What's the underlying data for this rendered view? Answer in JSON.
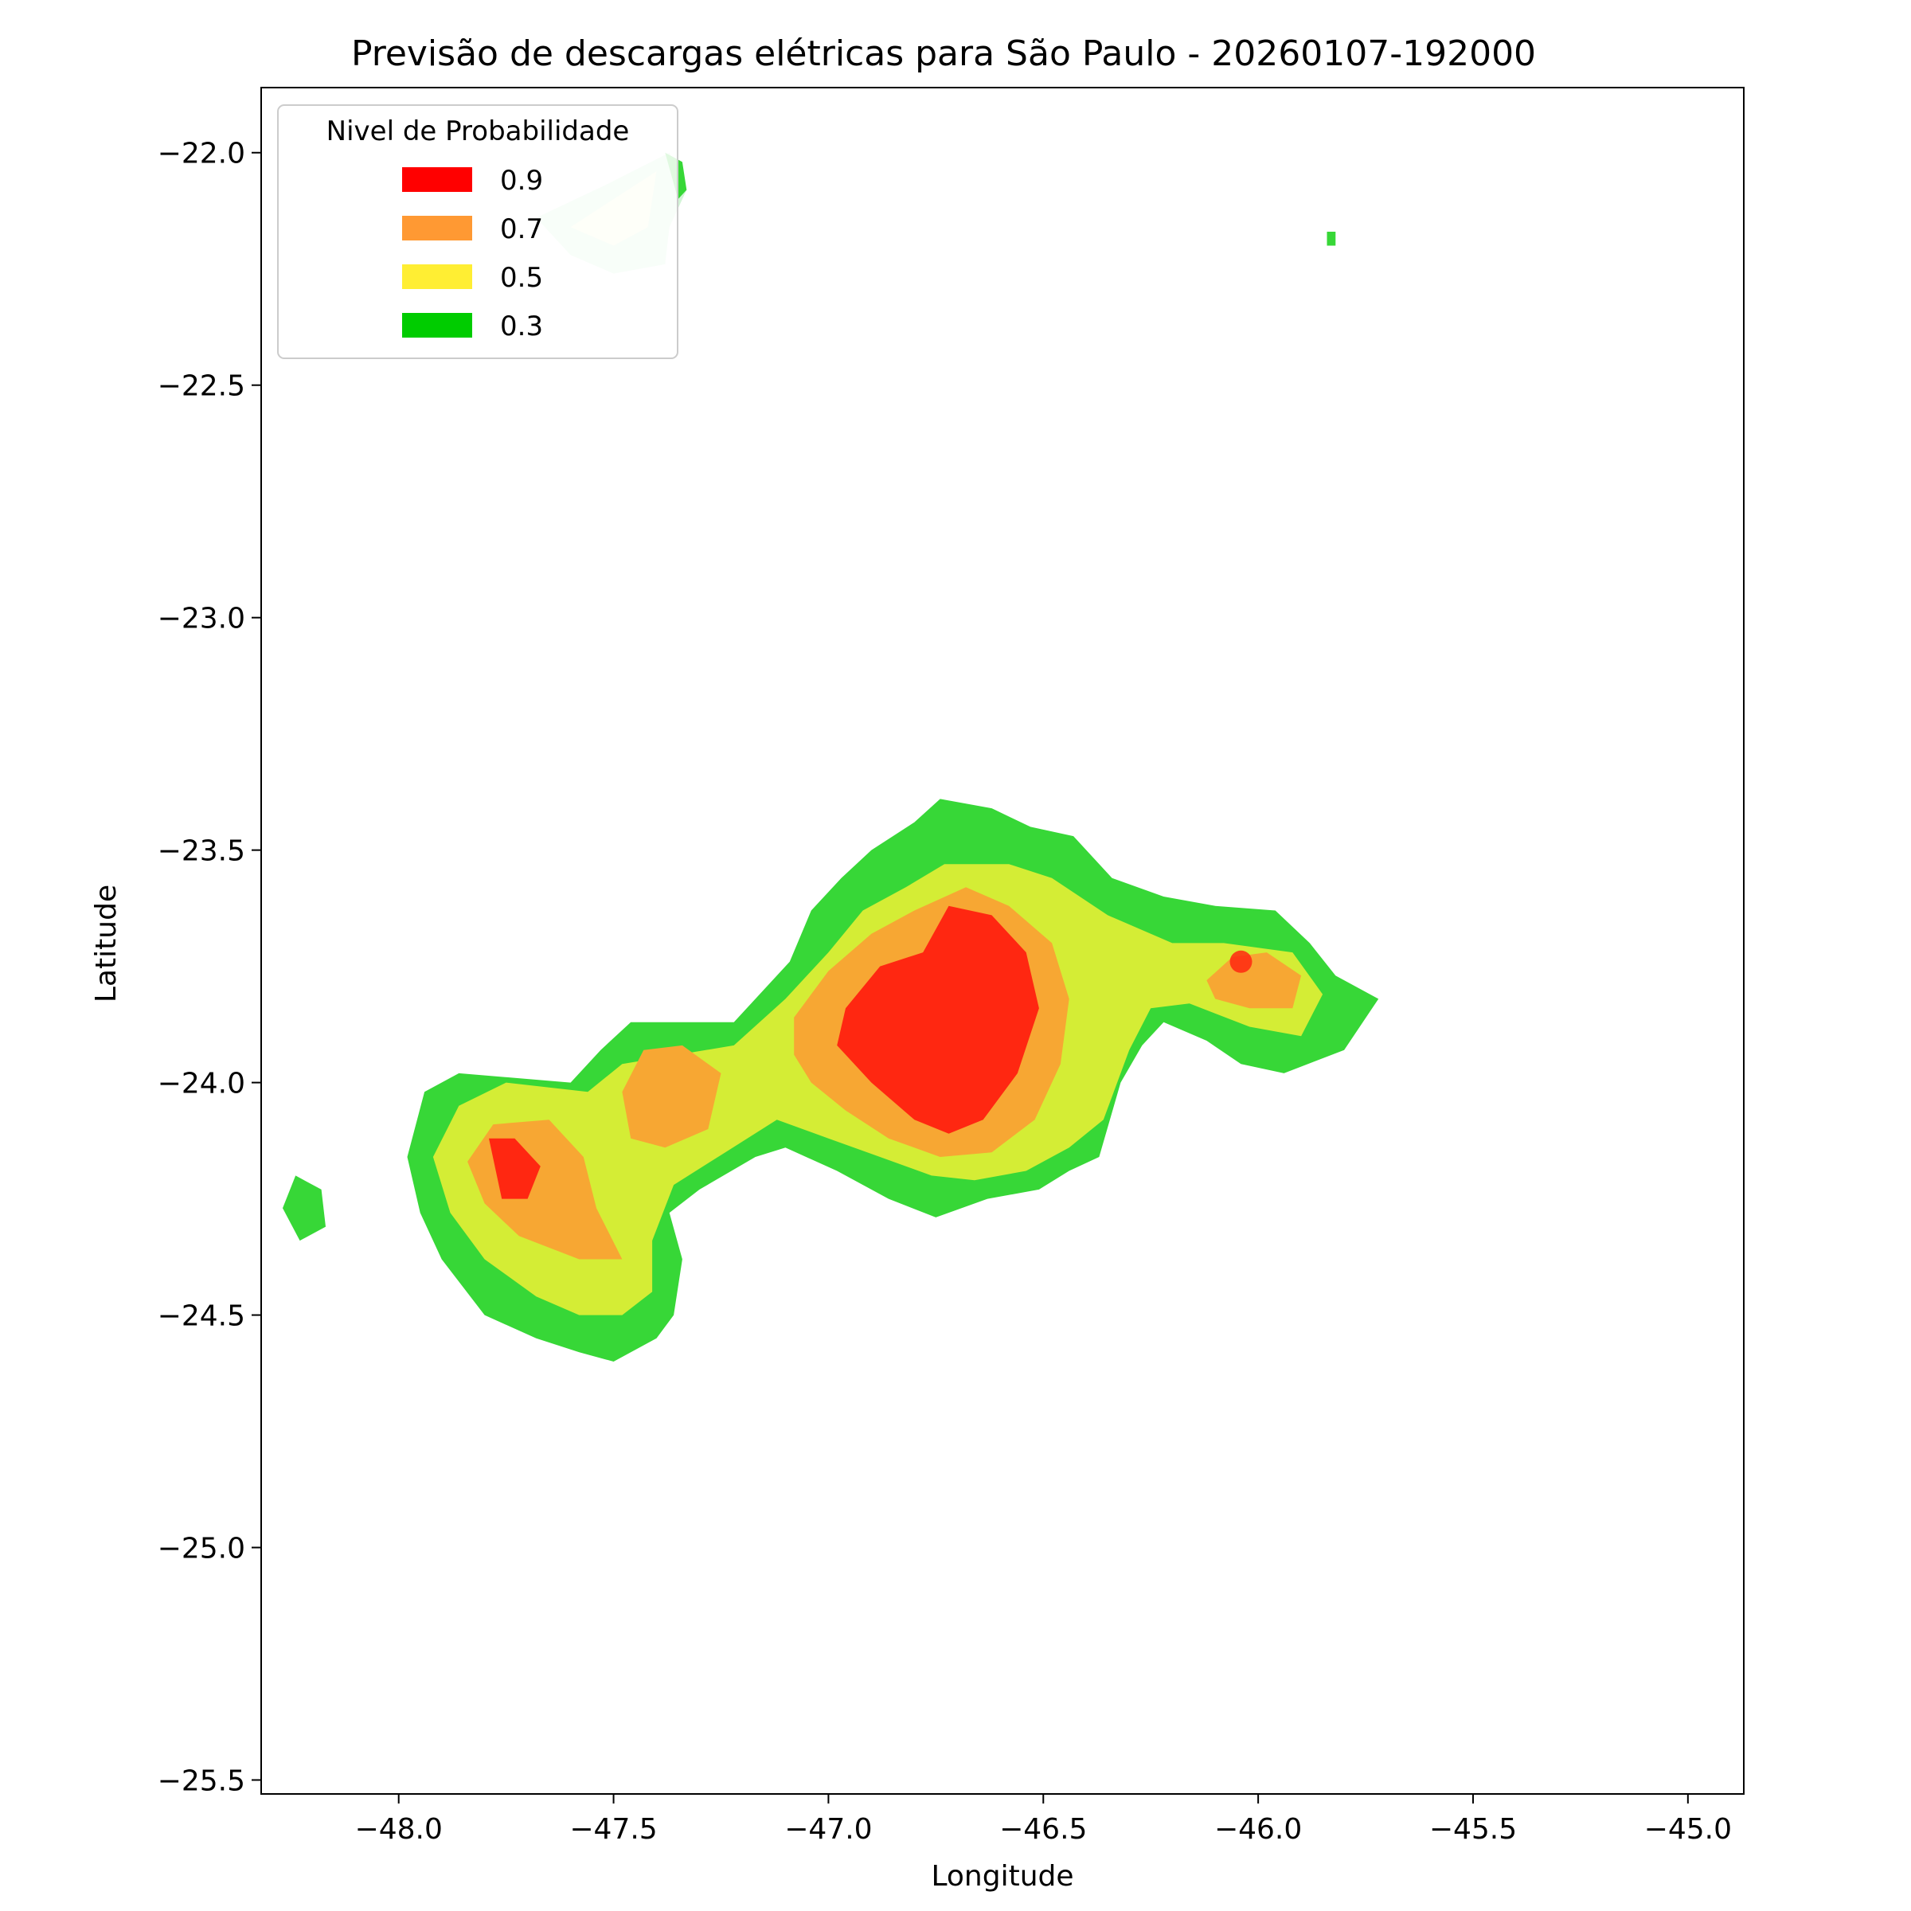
{
  "chart_data": {
    "type": "heatmap",
    "title": "Previsão de descargas elétricas para São Paulo - 20260107-192000",
    "xlabel": "Longitude",
    "ylabel": "Latitude",
    "xlim": [
      -48.32,
      -44.87
    ],
    "ylim": [
      -25.53,
      -21.86
    ],
    "xticks": [
      -48.0,
      -47.5,
      -47.0,
      -46.5,
      -46.0,
      -45.5,
      -45.0
    ],
    "yticks": [
      -22.0,
      -22.5,
      -23.0,
      -23.5,
      -24.0,
      -24.5,
      -25.0,
      -25.5
    ],
    "xtick_labels": [
      "−48.0",
      "−47.5",
      "−47.0",
      "−46.5",
      "−46.0",
      "−45.5",
      "−45.0"
    ],
    "ytick_labels": [
      "−22.0",
      "−22.5",
      "−23.0",
      "−23.5",
      "−24.0",
      "−24.5",
      "−25.0",
      "−25.5"
    ],
    "grid": false,
    "legend": {
      "title": "Nivel de Probabilidade",
      "placement": "upper-left",
      "entries": [
        {
          "label": "0.9",
          "color": "#ff0000"
        },
        {
          "label": "0.7",
          "color": "#ff9933"
        },
        {
          "label": "0.5",
          "color": "#ffee33"
        },
        {
          "label": "0.3",
          "color": "#00cc00"
        }
      ]
    },
    "fill_colors": {
      "0.3": "#37d737",
      "0.5": "#d4ed35",
      "0.7": "#f7a733",
      "0.9": "#ff2711",
      "faded_0.3": "#d2f4d6",
      "faded_0.5": "#f6fad7"
    },
    "regions": [
      {
        "level": "0.3",
        "points": [
          [
            -48.18,
            -24.23
          ],
          [
            -48.24,
            -24.2
          ],
          [
            -48.27,
            -24.27
          ],
          [
            -48.23,
            -24.34
          ],
          [
            -48.17,
            -24.31
          ]
        ]
      },
      {
        "level": "0.3",
        "points": [
          [
            -47.94,
            -24.02
          ],
          [
            -47.86,
            -23.98
          ],
          [
            -47.6,
            -24.0
          ],
          [
            -47.53,
            -23.93
          ],
          [
            -47.46,
            -23.87
          ],
          [
            -47.22,
            -23.87
          ],
          [
            -47.15,
            -23.8
          ],
          [
            -47.09,
            -23.74
          ],
          [
            -47.04,
            -23.63
          ],
          [
            -46.97,
            -23.56
          ],
          [
            -46.9,
            -23.5
          ],
          [
            -46.8,
            -23.44
          ],
          [
            -46.74,
            -23.39
          ],
          [
            -46.62,
            -23.41
          ],
          [
            -46.53,
            -23.45
          ],
          [
            -46.43,
            -23.47
          ],
          [
            -46.34,
            -23.56
          ],
          [
            -46.22,
            -23.6
          ],
          [
            -46.1,
            -23.62
          ],
          [
            -45.96,
            -23.63
          ],
          [
            -45.88,
            -23.7
          ],
          [
            -45.82,
            -23.77
          ],
          [
            -45.72,
            -23.82
          ],
          [
            -45.8,
            -23.93
          ],
          [
            -45.94,
            -23.98
          ],
          [
            -46.04,
            -23.96
          ],
          [
            -46.12,
            -23.91
          ],
          [
            -46.22,
            -23.87
          ],
          [
            -46.27,
            -23.92
          ],
          [
            -46.32,
            -24.0
          ],
          [
            -46.37,
            -24.16
          ],
          [
            -46.44,
            -24.19
          ],
          [
            -46.51,
            -24.23
          ],
          [
            -46.63,
            -24.25
          ],
          [
            -46.75,
            -24.29
          ],
          [
            -46.86,
            -24.25
          ],
          [
            -46.98,
            -24.19
          ],
          [
            -47.1,
            -24.14
          ],
          [
            -47.17,
            -24.16
          ],
          [
            -47.3,
            -24.23
          ],
          [
            -47.37,
            -24.28
          ],
          [
            -47.34,
            -24.38
          ],
          [
            -47.36,
            -24.5
          ],
          [
            -47.4,
            -24.55
          ],
          [
            -47.5,
            -24.6
          ],
          [
            -47.58,
            -24.58
          ],
          [
            -47.68,
            -24.55
          ],
          [
            -47.8,
            -24.5
          ],
          [
            -47.9,
            -24.38
          ],
          [
            -47.95,
            -24.28
          ],
          [
            -47.98,
            -24.16
          ]
        ]
      },
      {
        "level": "0.5",
        "points": [
          [
            -47.86,
            -24.05
          ],
          [
            -47.75,
            -24.0
          ],
          [
            -47.56,
            -24.02
          ],
          [
            -47.48,
            -23.96
          ],
          [
            -47.22,
            -23.92
          ],
          [
            -47.1,
            -23.82
          ],
          [
            -47.0,
            -23.72
          ],
          [
            -46.92,
            -23.63
          ],
          [
            -46.82,
            -23.58
          ],
          [
            -46.73,
            -23.53
          ],
          [
            -46.58,
            -23.53
          ],
          [
            -46.48,
            -23.56
          ],
          [
            -46.35,
            -23.64
          ],
          [
            -46.2,
            -23.7
          ],
          [
            -46.08,
            -23.7
          ],
          [
            -45.92,
            -23.72
          ],
          [
            -45.85,
            -23.81
          ],
          [
            -45.9,
            -23.9
          ],
          [
            -46.02,
            -23.88
          ],
          [
            -46.16,
            -23.83
          ],
          [
            -46.25,
            -23.84
          ],
          [
            -46.3,
            -23.93
          ],
          [
            -46.36,
            -24.08
          ],
          [
            -46.44,
            -24.14
          ],
          [
            -46.54,
            -24.19
          ],
          [
            -46.66,
            -24.21
          ],
          [
            -46.76,
            -24.2
          ],
          [
            -46.88,
            -24.16
          ],
          [
            -47.0,
            -24.12
          ],
          [
            -47.12,
            -24.08
          ],
          [
            -47.24,
            -24.15
          ],
          [
            -47.36,
            -24.22
          ],
          [
            -47.41,
            -24.34
          ],
          [
            -47.41,
            -24.45
          ],
          [
            -47.48,
            -24.5
          ],
          [
            -47.58,
            -24.5
          ],
          [
            -47.68,
            -24.46
          ],
          [
            -47.8,
            -24.38
          ],
          [
            -47.88,
            -24.28
          ],
          [
            -47.92,
            -24.16
          ]
        ]
      },
      {
        "level": "0.7",
        "points": [
          [
            -47.84,
            -24.17
          ],
          [
            -47.78,
            -24.09
          ],
          [
            -47.65,
            -24.08
          ],
          [
            -47.57,
            -24.16
          ],
          [
            -47.54,
            -24.27
          ],
          [
            -47.48,
            -24.38
          ],
          [
            -47.58,
            -24.38
          ],
          [
            -47.72,
            -24.33
          ],
          [
            -47.8,
            -24.26
          ]
        ]
      },
      {
        "level": "0.7",
        "points": [
          [
            -47.48,
            -24.02
          ],
          [
            -47.43,
            -23.93
          ],
          [
            -47.34,
            -23.92
          ],
          [
            -47.25,
            -23.98
          ],
          [
            -47.28,
            -24.1
          ],
          [
            -47.38,
            -24.14
          ],
          [
            -47.46,
            -24.12
          ]
        ]
      },
      {
        "level": "0.7",
        "points": [
          [
            -47.08,
            -23.86
          ],
          [
            -47.0,
            -23.76
          ],
          [
            -46.9,
            -23.68
          ],
          [
            -46.8,
            -23.63
          ],
          [
            -46.68,
            -23.58
          ],
          [
            -46.58,
            -23.62
          ],
          [
            -46.48,
            -23.7
          ],
          [
            -46.44,
            -23.82
          ],
          [
            -46.46,
            -23.96
          ],
          [
            -46.52,
            -24.08
          ],
          [
            -46.62,
            -24.15
          ],
          [
            -46.74,
            -24.16
          ],
          [
            -46.86,
            -24.12
          ],
          [
            -46.96,
            -24.06
          ],
          [
            -47.04,
            -24.0
          ],
          [
            -47.08,
            -23.94
          ]
        ]
      },
      {
        "level": "0.7",
        "points": [
          [
            -46.12,
            -23.78
          ],
          [
            -46.06,
            -23.73
          ],
          [
            -45.98,
            -23.72
          ],
          [
            -45.9,
            -23.77
          ],
          [
            -45.92,
            -23.84
          ],
          [
            -46.02,
            -23.84
          ],
          [
            -46.1,
            -23.82
          ]
        ]
      },
      {
        "level": "0.9",
        "points": [
          [
            -47.79,
            -24.12
          ],
          [
            -47.73,
            -24.12
          ],
          [
            -47.67,
            -24.18
          ],
          [
            -47.7,
            -24.25
          ],
          [
            -47.76,
            -24.25
          ]
        ]
      },
      {
        "level": "0.9",
        "points": [
          [
            -46.96,
            -23.84
          ],
          [
            -46.88,
            -23.75
          ],
          [
            -46.78,
            -23.72
          ],
          [
            -46.72,
            -23.62
          ],
          [
            -46.62,
            -23.64
          ],
          [
            -46.54,
            -23.72
          ],
          [
            -46.51,
            -23.84
          ],
          [
            -46.56,
            -23.98
          ],
          [
            -46.64,
            -24.08
          ],
          [
            -46.72,
            -24.11
          ],
          [
            -46.8,
            -24.08
          ],
          [
            -46.9,
            -24.0
          ],
          [
            -46.98,
            -23.92
          ]
        ]
      },
      {
        "level": "faded_0.3",
        "points": [
          [
            -47.68,
            -22.14
          ],
          [
            -47.52,
            -22.07
          ],
          [
            -47.37,
            -22.0
          ],
          [
            -47.33,
            -22.08
          ],
          [
            -47.37,
            -22.16
          ],
          [
            -47.38,
            -22.24
          ],
          [
            -47.5,
            -22.26
          ],
          [
            -47.6,
            -22.22
          ]
        ]
      },
      {
        "level": "0.3",
        "points": [
          [
            -47.38,
            -22.0
          ],
          [
            -47.34,
            -22.02
          ],
          [
            -47.33,
            -22.08
          ],
          [
            -47.35,
            -22.1
          ]
        ]
      },
      {
        "level": "faded_0.5",
        "points": [
          [
            -47.6,
            -22.16
          ],
          [
            -47.5,
            -22.1
          ],
          [
            -47.4,
            -22.04
          ],
          [
            -47.42,
            -22.16
          ],
          [
            -47.5,
            -22.2
          ]
        ]
      },
      {
        "level": "0.3",
        "points": [
          [
            -45.84,
            -22.17
          ],
          [
            -45.82,
            -22.17
          ],
          [
            -45.82,
            -22.2
          ],
          [
            -45.84,
            -22.2
          ]
        ]
      }
    ],
    "marker": {
      "x": -46.04,
      "y": -23.74,
      "color": "#ff2711"
    }
  }
}
